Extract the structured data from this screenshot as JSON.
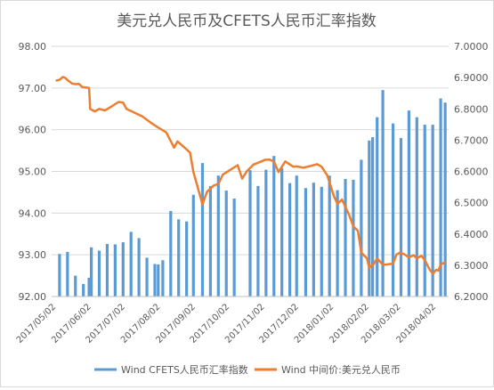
{
  "chart_data": {
    "type": "bar-line-combo",
    "title": "美元兑人民币及CFETS人民币汇率指数",
    "left_axis": {
      "range": [
        92.0,
        98.0
      ],
      "ticks": [
        "98.00",
        "97.00",
        "96.00",
        "95.00",
        "94.00",
        "93.00",
        "92.00"
      ],
      "tick_values": [
        98,
        97,
        96,
        95,
        94,
        93,
        92
      ]
    },
    "right_axis": {
      "range": [
        6.2,
        7.0
      ],
      "ticks": [
        "7.0000",
        "6.9000",
        "6.8000",
        "6.7000",
        "6.6000",
        "6.5000",
        "6.4000",
        "6.3000",
        "6.2000"
      ],
      "tick_values": [
        7.0,
        6.9,
        6.8,
        6.7,
        6.6,
        6.5,
        6.4,
        6.3,
        6.2
      ]
    },
    "x_axis": {
      "start": "2017-04-28",
      "end": "2018-04-13",
      "ticks": [
        {
          "date": "2017-05-02",
          "label": "2017/05/02"
        },
        {
          "date": "2017-06-02",
          "label": "2017/06/02"
        },
        {
          "date": "2017-07-02",
          "label": "2017/07/02"
        },
        {
          "date": "2017-08-02",
          "label": "2017/08/02"
        },
        {
          "date": "2017-09-02",
          "label": "2017/09/02"
        },
        {
          "date": "2017-10-02",
          "label": "2017/10/02"
        },
        {
          "date": "2017-11-02",
          "label": "2017/11/02"
        },
        {
          "date": "2017-12-02",
          "label": "2017/12/02"
        },
        {
          "date": "2018-01-02",
          "label": "2018/01/02"
        },
        {
          "date": "2018-02-02",
          "label": "2018/02/02"
        },
        {
          "date": "2018-03-02",
          "label": "2018/03/02"
        },
        {
          "date": "2018-04-02",
          "label": "2018/04/02"
        }
      ]
    },
    "grid": "horizontal",
    "legend_position": "bottom",
    "series": [
      {
        "name": "Wind CFETS人民币汇率指数",
        "type": "bar",
        "axis": "left",
        "color": "#5b9bd5",
        "points": [
          {
            "x": "2017-05-05",
            "y": 93.02
          },
          {
            "x": "2017-05-12",
            "y": 93.07
          },
          {
            "x": "2017-05-19",
            "y": 92.5
          },
          {
            "x": "2017-05-26",
            "y": 92.3
          },
          {
            "x": "2017-05-31",
            "y": 92.45
          },
          {
            "x": "2017-06-02",
            "y": 93.18
          },
          {
            "x": "2017-06-09",
            "y": 93.1
          },
          {
            "x": "2017-06-16",
            "y": 93.26
          },
          {
            "x": "2017-06-23",
            "y": 93.25
          },
          {
            "x": "2017-06-30",
            "y": 93.3
          },
          {
            "x": "2017-07-07",
            "y": 93.55
          },
          {
            "x": "2017-07-14",
            "y": 93.4
          },
          {
            "x": "2017-07-21",
            "y": 92.93
          },
          {
            "x": "2017-07-28",
            "y": 92.78
          },
          {
            "x": "2017-07-31",
            "y": 92.77
          },
          {
            "x": "2017-08-04",
            "y": 92.87
          },
          {
            "x": "2017-08-11",
            "y": 94.05
          },
          {
            "x": "2017-08-18",
            "y": 93.85
          },
          {
            "x": "2017-08-25",
            "y": 93.8
          },
          {
            "x": "2017-08-31",
            "y": 94.44
          },
          {
            "x": "2017-09-08",
            "y": 95.2
          },
          {
            "x": "2017-09-15",
            "y": 94.65
          },
          {
            "x": "2017-09-22",
            "y": 94.9
          },
          {
            "x": "2017-09-29",
            "y": 94.54
          },
          {
            "x": "2017-10-06",
            "y": 94.35
          },
          {
            "x": "2017-10-20",
            "y": 95.03
          },
          {
            "x": "2017-10-27",
            "y": 94.65
          },
          {
            "x": "2017-11-03",
            "y": 95.04
          },
          {
            "x": "2017-11-10",
            "y": 95.37
          },
          {
            "x": "2017-11-17",
            "y": 95.08
          },
          {
            "x": "2017-11-24",
            "y": 94.72
          },
          {
            "x": "2017-11-30",
            "y": 94.9
          },
          {
            "x": "2017-12-08",
            "y": 94.6
          },
          {
            "x": "2017-12-15",
            "y": 94.73
          },
          {
            "x": "2017-12-22",
            "y": 94.63
          },
          {
            "x": "2017-12-29",
            "y": 94.9
          },
          {
            "x": "2018-01-05",
            "y": 94.55
          },
          {
            "x": "2018-01-12",
            "y": 94.82
          },
          {
            "x": "2018-01-19",
            "y": 94.8
          },
          {
            "x": "2018-01-26",
            "y": 95.28
          },
          {
            "x": "2018-02-02",
            "y": 95.74
          },
          {
            "x": "2018-02-05",
            "y": 95.82
          },
          {
            "x": "2018-02-09",
            "y": 96.3
          },
          {
            "x": "2018-02-14",
            "y": 96.95
          },
          {
            "x": "2018-02-23",
            "y": 96.15
          },
          {
            "x": "2018-03-02",
            "y": 95.8
          },
          {
            "x": "2018-03-09",
            "y": 96.46
          },
          {
            "x": "2018-03-16",
            "y": 96.3
          },
          {
            "x": "2018-03-23",
            "y": 96.12
          },
          {
            "x": "2018-03-30",
            "y": 96.12
          },
          {
            "x": "2018-04-06",
            "y": 96.75
          },
          {
            "x": "2018-04-10",
            "y": 96.65
          }
        ]
      },
      {
        "name": "Wind 中间价:美元兑人民币",
        "type": "line",
        "axis": "right",
        "color": "#ed7d31",
        "points": [
          {
            "x": "2017-05-02",
            "y": 6.89
          },
          {
            "x": "2017-05-05",
            "y": 6.893
          },
          {
            "x": "2017-05-08",
            "y": 6.902
          },
          {
            "x": "2017-05-10",
            "y": 6.899
          },
          {
            "x": "2017-05-12",
            "y": 6.892
          },
          {
            "x": "2017-05-16",
            "y": 6.881
          },
          {
            "x": "2017-05-19",
            "y": 6.879
          },
          {
            "x": "2017-05-22",
            "y": 6.88
          },
          {
            "x": "2017-05-25",
            "y": 6.87
          },
          {
            "x": "2017-05-31",
            "y": 6.867
          },
          {
            "x": "2017-06-01",
            "y": 6.8
          },
          {
            "x": "2017-06-05",
            "y": 6.792
          },
          {
            "x": "2017-06-09",
            "y": 6.8
          },
          {
            "x": "2017-06-14",
            "y": 6.795
          },
          {
            "x": "2017-06-20",
            "y": 6.808
          },
          {
            "x": "2017-06-26",
            "y": 6.822
          },
          {
            "x": "2017-06-30",
            "y": 6.82
          },
          {
            "x": "2017-07-03",
            "y": 6.8
          },
          {
            "x": "2017-07-10",
            "y": 6.788
          },
          {
            "x": "2017-07-17",
            "y": 6.776
          },
          {
            "x": "2017-07-24",
            "y": 6.757
          },
          {
            "x": "2017-07-31",
            "y": 6.74
          },
          {
            "x": "2017-08-07",
            "y": 6.725
          },
          {
            "x": "2017-08-14",
            "y": 6.676
          },
          {
            "x": "2017-08-17",
            "y": 6.696
          },
          {
            "x": "2017-08-23",
            "y": 6.677
          },
          {
            "x": "2017-08-28",
            "y": 6.66
          },
          {
            "x": "2017-08-31",
            "y": 6.598
          },
          {
            "x": "2017-09-05",
            "y": 6.533
          },
          {
            "x": "2017-09-08",
            "y": 6.495
          },
          {
            "x": "2017-09-12",
            "y": 6.535
          },
          {
            "x": "2017-09-18",
            "y": 6.555
          },
          {
            "x": "2017-09-22",
            "y": 6.56
          },
          {
            "x": "2017-09-26",
            "y": 6.59
          },
          {
            "x": "2017-10-09",
            "y": 6.62
          },
          {
            "x": "2017-10-13",
            "y": 6.577
          },
          {
            "x": "2017-10-17",
            "y": 6.6
          },
          {
            "x": "2017-10-23",
            "y": 6.622
          },
          {
            "x": "2017-10-30",
            "y": 6.632
          },
          {
            "x": "2017-11-02",
            "y": 6.637
          },
          {
            "x": "2017-11-06",
            "y": 6.638
          },
          {
            "x": "2017-11-10",
            "y": 6.632
          },
          {
            "x": "2017-11-14",
            "y": 6.598
          },
          {
            "x": "2017-11-20",
            "y": 6.632
          },
          {
            "x": "2017-11-27",
            "y": 6.615
          },
          {
            "x": "2017-11-30",
            "y": 6.616
          },
          {
            "x": "2017-12-06",
            "y": 6.612
          },
          {
            "x": "2017-12-12",
            "y": 6.617
          },
          {
            "x": "2017-12-18",
            "y": 6.623
          },
          {
            "x": "2017-12-22",
            "y": 6.615
          },
          {
            "x": "2017-12-27",
            "y": 6.587
          },
          {
            "x": "2018-01-02",
            "y": 6.52
          },
          {
            "x": "2018-01-05",
            "y": 6.496
          },
          {
            "x": "2018-01-09",
            "y": 6.51
          },
          {
            "x": "2018-01-15",
            "y": 6.463
          },
          {
            "x": "2018-01-19",
            "y": 6.424
          },
          {
            "x": "2018-01-23",
            "y": 6.41
          },
          {
            "x": "2018-01-26",
            "y": 6.34
          },
          {
            "x": "2018-01-31",
            "y": 6.322
          },
          {
            "x": "2018-02-02",
            "y": 6.292
          },
          {
            "x": "2018-02-06",
            "y": 6.304
          },
          {
            "x": "2018-02-09",
            "y": 6.322
          },
          {
            "x": "2018-02-14",
            "y": 6.301
          },
          {
            "x": "2018-02-23",
            "y": 6.305
          },
          {
            "x": "2018-02-26",
            "y": 6.334
          },
          {
            "x": "2018-03-01",
            "y": 6.34
          },
          {
            "x": "2018-03-05",
            "y": 6.335
          },
          {
            "x": "2018-03-09",
            "y": 6.325
          },
          {
            "x": "2018-03-13",
            "y": 6.332
          },
          {
            "x": "2018-03-16",
            "y": 6.322
          },
          {
            "x": "2018-03-20",
            "y": 6.33
          },
          {
            "x": "2018-03-23",
            "y": 6.317
          },
          {
            "x": "2018-03-27",
            "y": 6.288
          },
          {
            "x": "2018-03-30",
            "y": 6.273
          },
          {
            "x": "2018-04-02",
            "y": 6.285
          },
          {
            "x": "2018-04-04",
            "y": 6.283
          },
          {
            "x": "2018-04-06",
            "y": 6.302
          },
          {
            "x": "2018-04-10",
            "y": 6.31
          }
        ]
      }
    ]
  }
}
